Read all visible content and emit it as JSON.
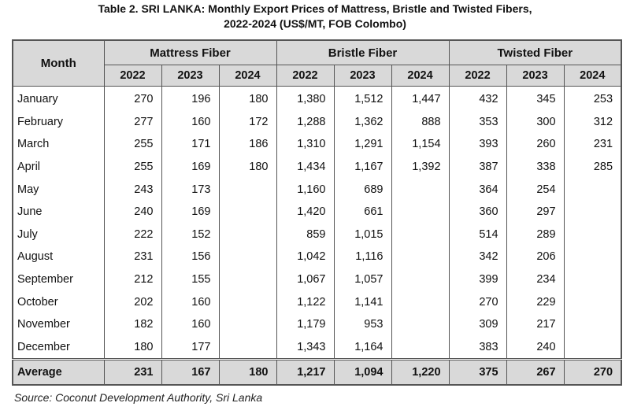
{
  "title": {
    "line1": "Table 2. SRI LANKA: Monthly Export Prices of Mattress, Bristle and Twisted Fibers,",
    "line2": "2022-2024 (US$/MT, FOB Colombo)"
  },
  "header": {
    "month": "Month",
    "groups": [
      "Mattress Fiber",
      "Bristle Fiber",
      "Twisted Fiber"
    ],
    "years": [
      "2022",
      "2023",
      "2024"
    ]
  },
  "rows": [
    {
      "month": "January",
      "v": [
        "270",
        "196",
        "180",
        "1,380",
        "1,512",
        "1,447",
        "432",
        "345",
        "253"
      ]
    },
    {
      "month": "February",
      "v": [
        "277",
        "160",
        "172",
        "1,288",
        "1,362",
        "888",
        "353",
        "300",
        "312"
      ]
    },
    {
      "month": "March",
      "v": [
        "255",
        "171",
        "186",
        "1,310",
        "1,291",
        "1,154",
        "393",
        "260",
        "231"
      ]
    },
    {
      "month": "April",
      "v": [
        "255",
        "169",
        "180",
        "1,434",
        "1,167",
        "1,392",
        "387",
        "338",
        "285"
      ]
    },
    {
      "month": "May",
      "v": [
        "243",
        "173",
        "",
        "1,160",
        "689",
        "",
        "364",
        "254",
        ""
      ]
    },
    {
      "month": "June",
      "v": [
        "240",
        "169",
        "",
        "1,420",
        "661",
        "",
        "360",
        "297",
        ""
      ]
    },
    {
      "month": "July",
      "v": [
        "222",
        "152",
        "",
        "859",
        "1,015",
        "",
        "514",
        "289",
        ""
      ]
    },
    {
      "month": "August",
      "v": [
        "231",
        "156",
        "",
        "1,042",
        "1,116",
        "",
        "342",
        "206",
        ""
      ]
    },
    {
      "month": "September",
      "v": [
        "212",
        "155",
        "",
        "1,067",
        "1,057",
        "",
        "399",
        "234",
        ""
      ]
    },
    {
      "month": "October",
      "v": [
        "202",
        "160",
        "",
        "1,122",
        "1,141",
        "",
        "270",
        "229",
        ""
      ]
    },
    {
      "month": "November",
      "v": [
        "182",
        "160",
        "",
        "1,179",
        "953",
        "",
        "309",
        "217",
        ""
      ]
    },
    {
      "month": "December",
      "v": [
        "180",
        "177",
        "",
        "1,343",
        "1,164",
        "",
        "383",
        "240",
        ""
      ]
    }
  ],
  "average": {
    "label": "Average",
    "v": [
      "231",
      "167",
      "180",
      "1,217",
      "1,094",
      "1,220",
      "375",
      "267",
      "270"
    ]
  },
  "source": "Source: Coconut Development Authority, Sri Lanka"
}
